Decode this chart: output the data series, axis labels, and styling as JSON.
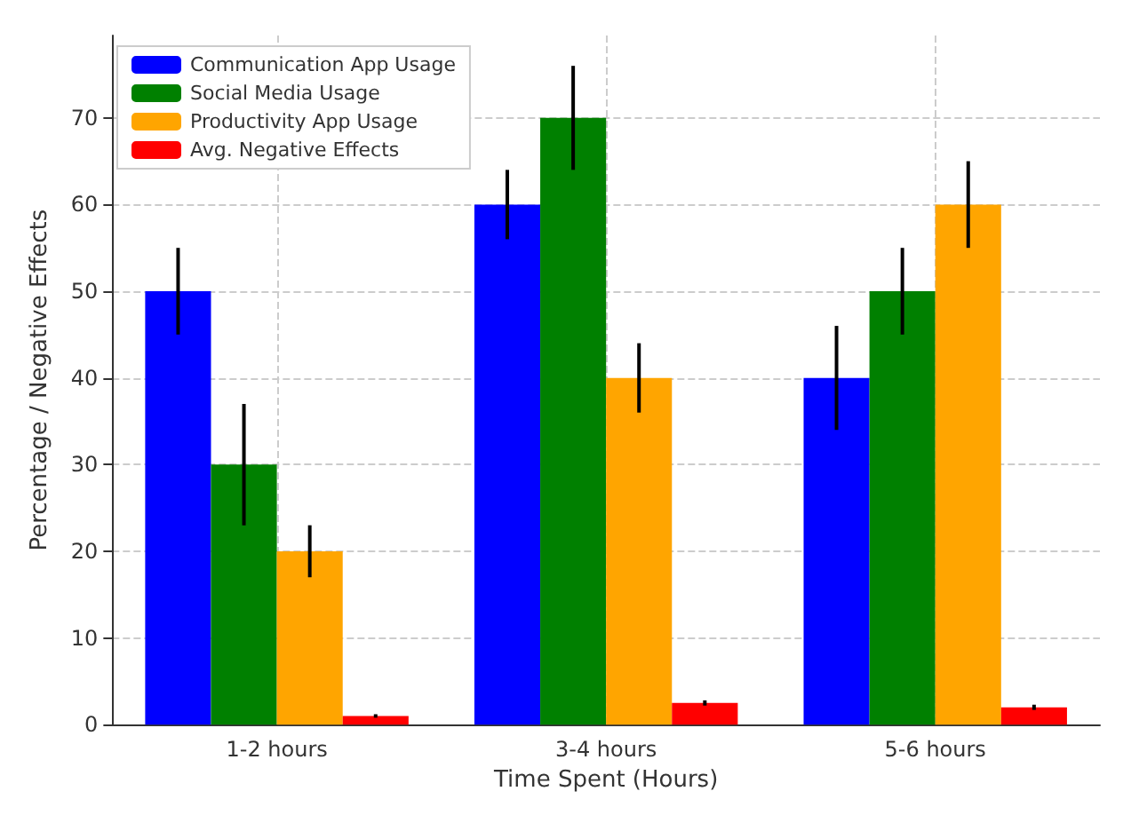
{
  "chart_data": {
    "type": "bar",
    "xlabel": "Time Spent (Hours)",
    "ylabel": "Percentage / Negative Effects",
    "categories": [
      "1-2 hours",
      "3-4 hours",
      "5-6 hours"
    ],
    "series": [
      {
        "name": "Communication App Usage",
        "color": "#0000ff",
        "values": [
          50,
          60,
          40
        ],
        "errors": [
          5,
          4,
          6
        ]
      },
      {
        "name": "Social Media Usage",
        "color": "#008000",
        "values": [
          30,
          70,
          50
        ],
        "errors": [
          7,
          6,
          5
        ]
      },
      {
        "name": "Productivity App Usage",
        "color": "#ffa500",
        "values": [
          20,
          40,
          60
        ],
        "errors": [
          3,
          4,
          5
        ]
      },
      {
        "name": "Avg. Negative Effects",
        "color": "#ff0000",
        "values": [
          1,
          2.5,
          2
        ],
        "errors": [
          0.2,
          0.3,
          0.3
        ]
      }
    ],
    "ylim": [
      0,
      79.5
    ],
    "yticks": [
      0,
      10,
      20,
      30,
      40,
      50,
      60,
      70
    ],
    "grid": true,
    "legend": "top left"
  }
}
